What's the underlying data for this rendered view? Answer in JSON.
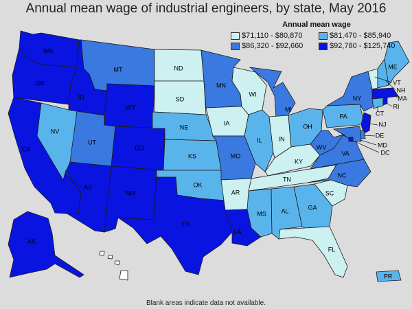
{
  "title": "Annual mean wage of industrial engineers, by state, May 2016",
  "legend": {
    "title": "Annual mean wage",
    "items": [
      {
        "key": "c1",
        "label": "$71,110 - $80,870",
        "color": "#cdf0f0"
      },
      {
        "key": "c2",
        "label": "$81,470 - $85,940",
        "color": "#5ab4ec"
      },
      {
        "key": "c3",
        "label": "$86,320 - $92,660",
        "color": "#3a79e0"
      },
      {
        "key": "c4",
        "label": "$92,780 - $125,740",
        "color": "#0a14e0"
      }
    ]
  },
  "footnote": "Blank areas indicate data not available.",
  "states": [
    {
      "abbr": "WA",
      "class": "c4"
    },
    {
      "abbr": "OR",
      "class": "c4"
    },
    {
      "abbr": "CA",
      "class": "c4"
    },
    {
      "abbr": "ID",
      "class": "c4"
    },
    {
      "abbr": "NV",
      "class": "c2"
    },
    {
      "abbr": "MT",
      "class": "c3"
    },
    {
      "abbr": "WY",
      "class": "c4"
    },
    {
      "abbr": "UT",
      "class": "c3"
    },
    {
      "abbr": "AZ",
      "class": "c4"
    },
    {
      "abbr": "CO",
      "class": "c4"
    },
    {
      "abbr": "NM",
      "class": "c4"
    },
    {
      "abbr": "ND",
      "class": "c1"
    },
    {
      "abbr": "SD",
      "class": "c1"
    },
    {
      "abbr": "NE",
      "class": "c2"
    },
    {
      "abbr": "KS",
      "class": "c2"
    },
    {
      "abbr": "OK",
      "class": "c2"
    },
    {
      "abbr": "TX",
      "class": "c4"
    },
    {
      "abbr": "MN",
      "class": "c3"
    },
    {
      "abbr": "IA",
      "class": "c1"
    },
    {
      "abbr": "MO",
      "class": "c3"
    },
    {
      "abbr": "AR",
      "class": "c1"
    },
    {
      "abbr": "LA",
      "class": "c4"
    },
    {
      "abbr": "WI",
      "class": "c1"
    },
    {
      "abbr": "IL",
      "class": "c2"
    },
    {
      "abbr": "MI",
      "class": "c3"
    },
    {
      "abbr": "IN",
      "class": "c1"
    },
    {
      "abbr": "OH",
      "class": "c2"
    },
    {
      "abbr": "KY",
      "class": "c1"
    },
    {
      "abbr": "TN",
      "class": "c1"
    },
    {
      "abbr": "MS",
      "class": "c2"
    },
    {
      "abbr": "AL",
      "class": "c2"
    },
    {
      "abbr": "GA",
      "class": "c2"
    },
    {
      "abbr": "FL",
      "class": "c1"
    },
    {
      "abbr": "SC",
      "class": "c1"
    },
    {
      "abbr": "NC",
      "class": "c3"
    },
    {
      "abbr": "VA",
      "class": "c3"
    },
    {
      "abbr": "WV",
      "class": "c3"
    },
    {
      "abbr": "PA",
      "class": "c2"
    },
    {
      "abbr": "NY",
      "class": "c3"
    },
    {
      "abbr": "NJ",
      "class": "c4"
    },
    {
      "abbr": "DE",
      "class": "c3"
    },
    {
      "abbr": "MD",
      "class": "c3"
    },
    {
      "abbr": "DC",
      "class": "c4"
    },
    {
      "abbr": "CT",
      "class": "c2"
    },
    {
      "abbr": "RI",
      "class": "c4"
    },
    {
      "abbr": "MA",
      "class": "c4"
    },
    {
      "abbr": "VT",
      "class": "c1"
    },
    {
      "abbr": "NH",
      "class": "c2"
    },
    {
      "abbr": "ME",
      "class": "c2"
    },
    {
      "abbr": "AK",
      "class": "c4"
    },
    {
      "abbr": "HI",
      "class": "none"
    },
    {
      "abbr": "PR",
      "class": "c2"
    }
  ]
}
